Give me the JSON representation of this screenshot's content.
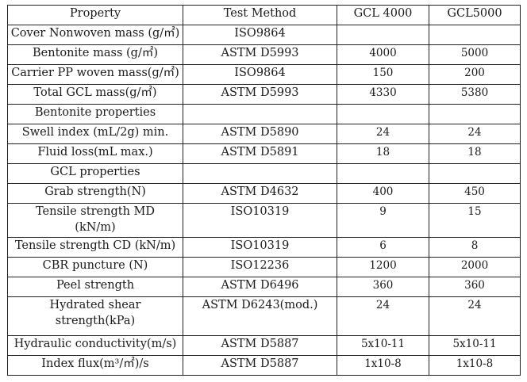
{
  "table": {
    "headers": [
      "Property",
      "Test Method",
      "GCL 4000",
      "GCL5000"
    ],
    "rows": [
      {
        "property": "Cover Nonwoven mass (g/㎡)",
        "method": "ISO9864",
        "gcl4000": "",
        "gcl5000": ""
      },
      {
        "property": "Bentonite mass (g/㎡)",
        "method": "ASTM D5993",
        "gcl4000": "4000",
        "gcl5000": "5000"
      },
      {
        "property": "Carrier PP woven mass(g/㎡)",
        "method": "ISO9864",
        "gcl4000": "150",
        "gcl5000": "200"
      },
      {
        "property": "Total GCL mass(g/㎡)",
        "method": "ASTM D5993",
        "gcl4000": "4330",
        "gcl5000": "5380"
      },
      {
        "property": "Bentonite properties",
        "method": "",
        "gcl4000": "",
        "gcl5000": ""
      },
      {
        "property": "Swell index (mL/2g) min.",
        "method": "ASTM D5890",
        "gcl4000": "24",
        "gcl5000": "24"
      },
      {
        "property": "Fluid loss(mL max.)",
        "method": "ASTM D5891",
        "gcl4000": "18",
        "gcl5000": "18"
      },
      {
        "property": "GCL properties",
        "method": "",
        "gcl4000": "",
        "gcl5000": ""
      },
      {
        "property": "Grab strength(N)",
        "method": "ASTM D4632",
        "gcl4000": "400",
        "gcl5000": "450"
      },
      {
        "property": "Tensile strength MD (kN/m)",
        "method": "ISO10319",
        "gcl4000": "9",
        "gcl5000": "15"
      },
      {
        "property": "Tensile strength CD (kN/m)",
        "method": "ISO10319",
        "gcl4000": "6",
        "gcl5000": "8"
      },
      {
        "property": "CBR puncture (N)",
        "method": "ISO12236",
        "gcl4000": "1200",
        "gcl5000": "2000"
      },
      {
        "property": "Peel strength",
        "method": "ASTM D6496",
        "gcl4000": "360",
        "gcl5000": "360"
      },
      {
        "property": "Hydrated shear strength(kPa)",
        "method": "ASTM D6243(mod.)",
        "gcl4000": "24",
        "gcl5000": "24"
      },
      {
        "property": "Hydraulic conductivity(m/s)",
        "method": "ASTM D5887",
        "gcl4000": "5x10-11",
        "gcl5000": "5x10-11"
      },
      {
        "property": "Index flux(m³/㎡)/s",
        "method": "ASTM D5887",
        "gcl4000": "1x10-8",
        "gcl5000": "1x10-8"
      }
    ]
  }
}
